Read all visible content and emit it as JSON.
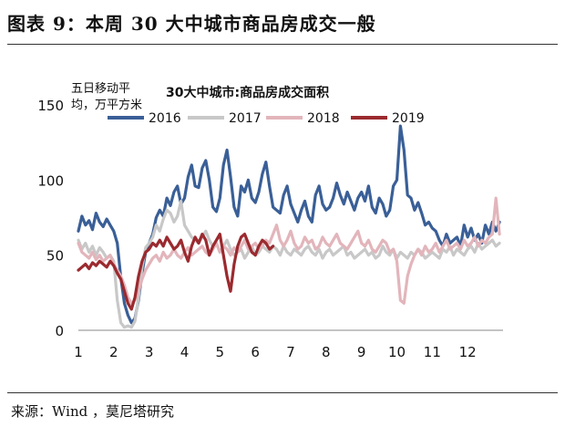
{
  "figure": {
    "title": "图表 9：本周 30 大中城市商品房成交一般",
    "source": "来源：Wind ，莫尼塔研究"
  },
  "chart_data": {
    "type": "line",
    "title": "30大中城市:商品房成交面积",
    "ylabel": "五日移动平均，万平方米",
    "ylabel_lines": [
      "五日移动平",
      "均，万平方米"
    ],
    "ylim": [
      0,
      150
    ],
    "yticks": [
      0,
      50,
      100,
      150
    ],
    "xlim": [
      1,
      13
    ],
    "xticks": [
      "1",
      "2",
      "3",
      "4",
      "5",
      "6",
      "7",
      "8",
      "9",
      "10",
      "11",
      "12"
    ],
    "grid": false,
    "legend_position": "top",
    "series": [
      {
        "name": "2016",
        "color": "#3a5f97",
        "x": [
          1.0,
          1.1,
          1.2,
          1.3,
          1.4,
          1.5,
          1.6,
          1.7,
          1.8,
          1.9,
          2.0,
          2.1,
          2.2,
          2.3,
          2.4,
          2.5,
          2.6,
          2.7,
          2.8,
          2.9,
          3.0,
          3.1,
          3.2,
          3.3,
          3.4,
          3.5,
          3.6,
          3.7,
          3.8,
          3.9,
          4.0,
          4.1,
          4.2,
          4.3,
          4.4,
          4.5,
          4.6,
          4.7,
          4.8,
          4.9,
          5.0,
          5.1,
          5.2,
          5.3,
          5.4,
          5.5,
          5.6,
          5.7,
          5.8,
          5.9,
          6.0,
          6.1,
          6.2,
          6.3,
          6.4,
          6.5,
          6.6,
          6.7,
          6.8,
          6.9,
          7.0,
          7.1,
          7.2,
          7.3,
          7.4,
          7.5,
          7.6,
          7.7,
          7.8,
          7.9,
          8.0,
          8.1,
          8.2,
          8.3,
          8.4,
          8.5,
          8.6,
          8.7,
          8.8,
          8.9,
          9.0,
          9.1,
          9.2,
          9.3,
          9.4,
          9.5,
          9.6,
          9.7,
          9.8,
          9.9,
          10.0,
          10.1,
          10.2,
          10.3,
          10.4,
          10.5,
          10.6,
          10.7,
          10.8,
          10.9,
          11.0,
          11.1,
          11.2,
          11.3,
          11.4,
          11.5,
          11.6,
          11.7,
          11.8,
          11.9,
          12.0,
          12.1,
          12.2,
          12.3,
          12.4,
          12.5,
          12.6,
          12.7,
          12.8,
          12.9
        ],
        "values": [
          66,
          76,
          70,
          73,
          67,
          78,
          72,
          69,
          74,
          70,
          66,
          58,
          35,
          18,
          10,
          5,
          8,
          20,
          38,
          52,
          58,
          64,
          75,
          80,
          76,
          88,
          83,
          92,
          96,
          84,
          88,
          102,
          110,
          96,
          95,
          108,
          113,
          100,
          82,
          79,
          88,
          110,
          120,
          102,
          82,
          76,
          96,
          92,
          100,
          88,
          85,
          92,
          104,
          112,
          96,
          82,
          80,
          78,
          90,
          96,
          84,
          78,
          72,
          80,
          86,
          76,
          72,
          90,
          96,
          84,
          80,
          82,
          88,
          98,
          90,
          84,
          92,
          86,
          80,
          88,
          92,
          86,
          96,
          82,
          78,
          88,
          84,
          76,
          80,
          96,
          100,
          136,
          120,
          90,
          88,
          80,
          85,
          78,
          70,
          72,
          68,
          66,
          60,
          56,
          64,
          58,
          60,
          62,
          56,
          70,
          62,
          68,
          60,
          64,
          58,
          70,
          64,
          72,
          66,
          72
        ]
      },
      {
        "name": "2017",
        "color": "#c8c8c8",
        "x": [
          1.0,
          1.1,
          1.2,
          1.3,
          1.4,
          1.5,
          1.6,
          1.7,
          1.8,
          1.9,
          2.0,
          2.1,
          2.2,
          2.3,
          2.4,
          2.5,
          2.6,
          2.7,
          2.8,
          2.9,
          3.0,
          3.1,
          3.2,
          3.3,
          3.4,
          3.5,
          3.6,
          3.7,
          3.8,
          3.9,
          4.0,
          4.1,
          4.2,
          4.3,
          4.4,
          4.5,
          4.6,
          4.7,
          4.8,
          4.9,
          5.0,
          5.1,
          5.2,
          5.3,
          5.4,
          5.5,
          5.6,
          5.7,
          5.8,
          5.9,
          6.0,
          6.1,
          6.2,
          6.3,
          6.4,
          6.5,
          6.6,
          6.7,
          6.8,
          6.9,
          7.0,
          7.1,
          7.2,
          7.3,
          7.4,
          7.5,
          7.6,
          7.7,
          7.8,
          7.9,
          8.0,
          8.1,
          8.2,
          8.3,
          8.4,
          8.5,
          8.6,
          8.7,
          8.8,
          8.9,
          9.0,
          9.1,
          9.2,
          9.3,
          9.4,
          9.5,
          9.6,
          9.7,
          9.8,
          9.9,
          10.0,
          10.1,
          10.2,
          10.3,
          10.4,
          10.5,
          10.6,
          10.7,
          10.8,
          10.9,
          11.0,
          11.1,
          11.2,
          11.3,
          11.4,
          11.5,
          11.6,
          11.7,
          11.8,
          11.9,
          12.0,
          12.1,
          12.2,
          12.3,
          12.4,
          12.5,
          12.6,
          12.7,
          12.8,
          12.9
        ],
        "values": [
          60,
          54,
          58,
          52,
          56,
          50,
          55,
          52,
          48,
          50,
          46,
          20,
          5,
          2,
          3,
          2,
          6,
          22,
          42,
          55,
          58,
          62,
          70,
          66,
          74,
          80,
          78,
          72,
          76,
          86,
          70,
          66,
          62,
          60,
          58,
          62,
          66,
          60,
          56,
          58,
          52,
          56,
          60,
          54,
          50,
          52,
          54,
          48,
          52,
          56,
          50,
          52,
          56,
          54,
          52,
          56,
          54,
          50,
          56,
          52,
          50,
          54,
          52,
          50,
          54,
          56,
          52,
          50,
          54,
          48,
          52,
          54,
          50,
          52,
          54,
          56,
          50,
          52,
          48,
          50,
          52,
          54,
          50,
          52,
          48,
          50,
          56,
          52,
          50,
          54,
          48,
          52,
          50,
          48,
          52,
          50,
          54,
          52,
          48,
          50,
          52,
          50,
          48,
          54,
          52,
          56,
          50,
          54,
          52,
          50,
          54,
          56,
          52,
          58,
          54,
          56,
          58,
          60,
          56,
          58
        ]
      },
      {
        "name": "2018",
        "color": "#e2b5bb",
        "x": [
          1.0,
          1.1,
          1.2,
          1.3,
          1.4,
          1.5,
          1.6,
          1.7,
          1.8,
          1.9,
          2.0,
          2.1,
          2.2,
          2.3,
          2.4,
          2.5,
          2.6,
          2.7,
          2.8,
          2.9,
          3.0,
          3.1,
          3.2,
          3.3,
          3.4,
          3.5,
          3.6,
          3.7,
          3.8,
          3.9,
          4.0,
          4.1,
          4.2,
          4.3,
          4.4,
          4.5,
          4.6,
          4.7,
          4.8,
          4.9,
          5.0,
          5.1,
          5.2,
          5.3,
          5.4,
          5.5,
          5.6,
          5.7,
          5.8,
          5.9,
          6.0,
          6.1,
          6.2,
          6.3,
          6.4,
          6.5,
          6.6,
          6.7,
          6.8,
          6.9,
          7.0,
          7.1,
          7.2,
          7.3,
          7.4,
          7.5,
          7.6,
          7.7,
          7.8,
          7.9,
          8.0,
          8.1,
          8.2,
          8.3,
          8.4,
          8.5,
          8.6,
          8.7,
          8.8,
          8.9,
          9.0,
          9.1,
          9.2,
          9.3,
          9.4,
          9.5,
          9.6,
          9.7,
          9.8,
          9.9,
          10.0,
          10.1,
          10.2,
          10.3,
          10.4,
          10.5,
          10.6,
          10.7,
          10.8,
          10.9,
          11.0,
          11.1,
          11.2,
          11.3,
          11.4,
          11.5,
          11.6,
          11.7,
          11.8,
          11.9,
          12.0,
          12.1,
          12.2,
          12.3,
          12.4,
          12.5,
          12.6,
          12.7,
          12.8,
          12.9
        ],
        "values": [
          58,
          52,
          50,
          48,
          52,
          47,
          50,
          46,
          48,
          50,
          44,
          40,
          36,
          30,
          22,
          18,
          20,
          26,
          34,
          40,
          44,
          48,
          50,
          46,
          52,
          48,
          50,
          54,
          50,
          48,
          52,
          55,
          50,
          52,
          54,
          56,
          52,
          50,
          54,
          58,
          52,
          56,
          54,
          50,
          55,
          52,
          56,
          60,
          54,
          56,
          58,
          54,
          56,
          60,
          58,
          64,
          70,
          60,
          56,
          60,
          66,
          58,
          54,
          56,
          62,
          58,
          60,
          54,
          56,
          62,
          58,
          56,
          60,
          64,
          58,
          56,
          54,
          58,
          62,
          66,
          58,
          56,
          60,
          54,
          52,
          56,
          60,
          58,
          52,
          54,
          46,
          20,
          18,
          36,
          44,
          50,
          54,
          50,
          56,
          52,
          54,
          58,
          52,
          56,
          60,
          54,
          56,
          58,
          54,
          60,
          56,
          58,
          62,
          56,
          60,
          58,
          62,
          64,
          88,
          64
        ]
      },
      {
        "name": "2019",
        "color": "#9b2a2f",
        "x": [
          1.0,
          1.1,
          1.2,
          1.3,
          1.4,
          1.5,
          1.6,
          1.7,
          1.8,
          1.9,
          2.0,
          2.1,
          2.2,
          2.3,
          2.4,
          2.5,
          2.6,
          2.7,
          2.8,
          2.9,
          3.0,
          3.1,
          3.2,
          3.3,
          3.4,
          3.5,
          3.6,
          3.7,
          3.8,
          3.9,
          4.0,
          4.1,
          4.2,
          4.3,
          4.4,
          4.5,
          4.6,
          4.7,
          4.8,
          4.9,
          5.0,
          5.1,
          5.2,
          5.3,
          5.4,
          5.5,
          5.6,
          5.7,
          5.8,
          5.9,
          6.0,
          6.1,
          6.2,
          6.3,
          6.4,
          6.5
        ],
        "values": [
          40,
          42,
          44,
          41,
          45,
          43,
          46,
          44,
          42,
          46,
          43,
          38,
          34,
          26,
          18,
          14,
          22,
          36,
          46,
          52,
          54,
          58,
          56,
          60,
          56,
          62,
          58,
          54,
          56,
          60,
          52,
          46,
          56,
          62,
          58,
          64,
          60,
          50,
          56,
          60,
          64,
          50,
          36,
          26,
          44,
          56,
          62,
          64,
          58,
          52,
          50,
          56,
          60,
          58,
          54,
          56
        ]
      }
    ]
  }
}
